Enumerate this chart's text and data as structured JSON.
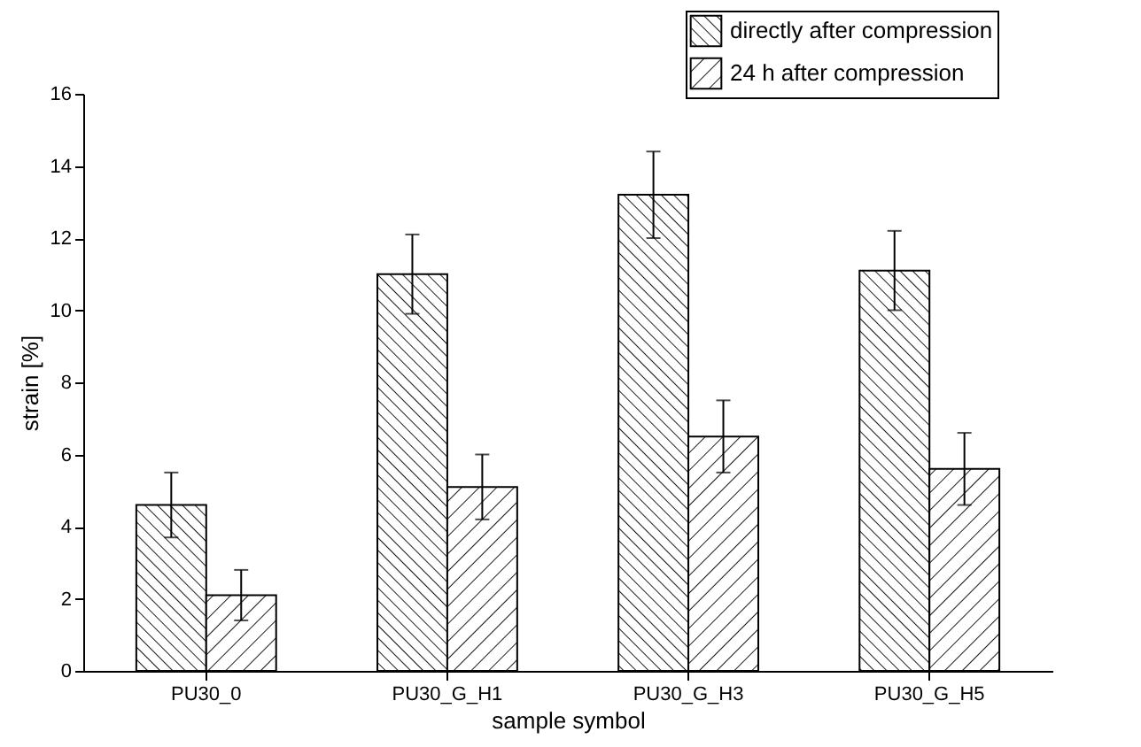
{
  "chart_data": {
    "type": "bar",
    "xlabel": "sample symbol",
    "ylabel": "strain [%]",
    "categories": [
      "PU30_0",
      "PU30_G_H1",
      "PU30_G_H3",
      "PU30_G_H5"
    ],
    "series": [
      {
        "name": "directly after compression",
        "color": "#000000",
        "values": [
          4.6,
          11.0,
          13.2,
          11.1
        ],
        "errors": [
          0.9,
          1.1,
          1.2,
          1.1
        ]
      },
      {
        "name": "24 h after compression",
        "color": "#000000",
        "values": [
          2.1,
          5.1,
          6.5,
          5.6
        ],
        "errors": [
          0.7,
          0.9,
          1.0,
          1.0
        ]
      }
    ],
    "ylim": [
      0,
      16
    ],
    "yticks": [
      0,
      2,
      4,
      6,
      8,
      10,
      12,
      14,
      16
    ],
    "grid": false,
    "legend": "top right"
  }
}
